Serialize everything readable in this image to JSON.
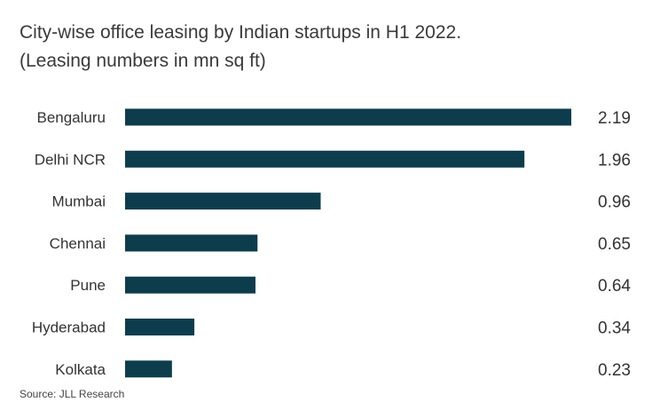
{
  "title": {
    "line1": "City-wise office leasing by Indian startups in H1 2022.",
    "line2": "(Leasing numbers in mn sq ft)"
  },
  "source": "Source: JLL Research",
  "colors": {
    "bar": "#0d3d4d",
    "text": "#333333"
  },
  "chart_data": {
    "type": "bar",
    "orientation": "horizontal",
    "title": "City-wise office leasing by Indian startups in H1 2022.",
    "subtitle": "(Leasing numbers in mn sq ft)",
    "categories": [
      "Bengaluru",
      "Delhi NCR",
      "Mumbai",
      "Chennai",
      "Pune",
      "Hyderabad",
      "Kolkata"
    ],
    "values": [
      2.19,
      1.96,
      0.96,
      0.65,
      0.64,
      0.34,
      0.23
    ],
    "data_labels": [
      "2.19",
      "1.96",
      "0.96",
      "0.65",
      "0.64",
      "0.34",
      "0.23"
    ],
    "xlabel": "",
    "ylabel": "",
    "xlim": [
      0,
      2.19
    ],
    "grid": false,
    "legend": "none"
  }
}
